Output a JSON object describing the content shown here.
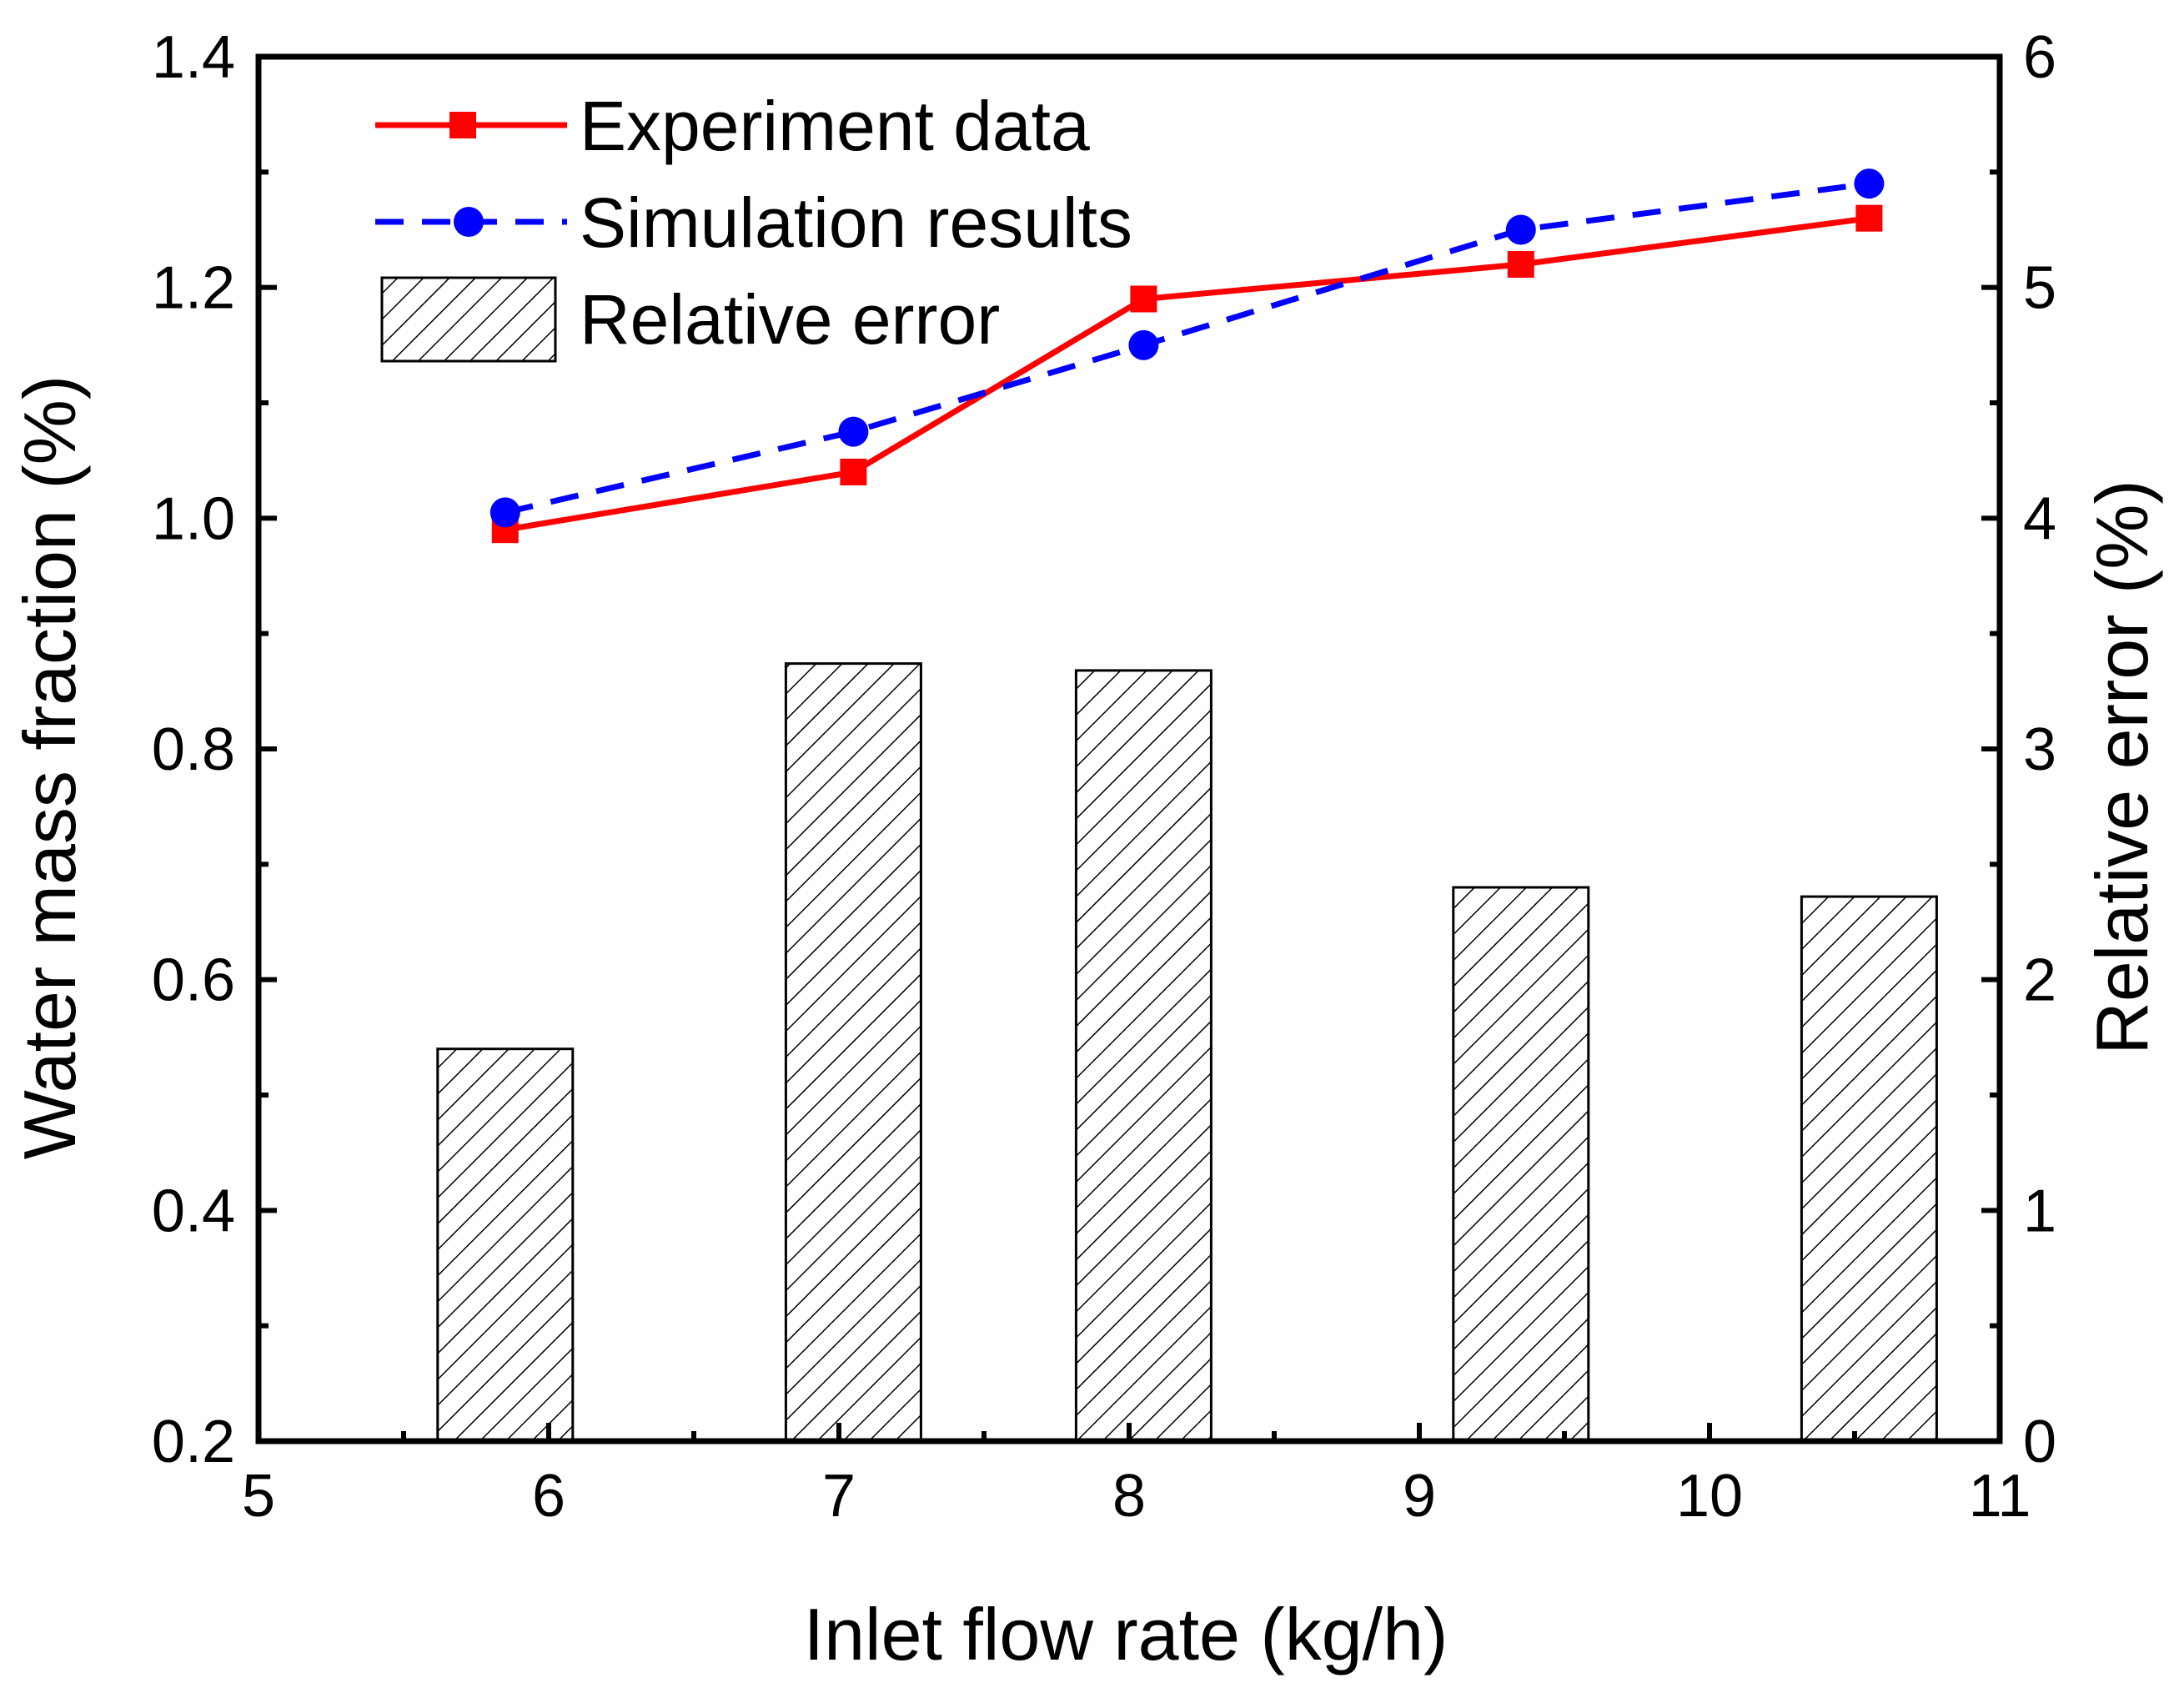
{
  "chart_data": {
    "type": "bar+line",
    "xlabel": "Inlet flow rate (kg/h)",
    "ylabel_left": "Water mass fraction (%)",
    "ylabel_right": "Relative error (%)",
    "xlim": [
      5,
      11
    ],
    "ylim_left": [
      0.2,
      1.4
    ],
    "ylim_right": [
      0,
      6
    ],
    "x_ticks": [
      "5",
      "6",
      "7",
      "8",
      "9",
      "10",
      "11"
    ],
    "y_left_ticks": [
      "0.2",
      "0.4",
      "0.6",
      "0.8",
      "1.0",
      "1.2",
      "1.4"
    ],
    "y_right_ticks": [
      "0",
      "1",
      "2",
      "3",
      "4",
      "5",
      "6"
    ],
    "legend_position": "top-left",
    "series": [
      {
        "name": "Experiment data",
        "type": "line",
        "axis": "left",
        "color": "#ff0000",
        "marker": "square",
        "line_style": "solid",
        "x": [
          5.85,
          7.05,
          8.05,
          9.35,
          10.55
        ],
        "values": [
          0.99,
          1.04,
          1.19,
          1.22,
          1.26
        ]
      },
      {
        "name": "Simulation results",
        "type": "line",
        "axis": "left",
        "color": "#0000ff",
        "marker": "circle",
        "line_style": "dashed",
        "x": [
          5.85,
          7.05,
          8.05,
          9.35,
          10.55
        ],
        "values": [
          1.005,
          1.075,
          1.15,
          1.25,
          1.29
        ]
      },
      {
        "name": "Relative error",
        "type": "bar",
        "axis": "right",
        "pattern": "hatched",
        "color": "#000000",
        "x": [
          5.85,
          7.05,
          8.05,
          9.35,
          10.55
        ],
        "values": [
          1.7,
          3.37,
          3.34,
          2.4,
          2.36
        ]
      }
    ]
  }
}
